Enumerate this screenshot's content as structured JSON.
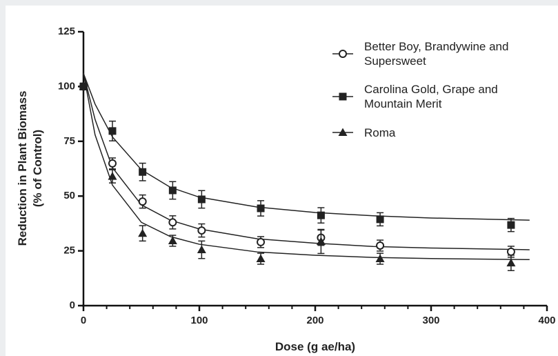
{
  "chart_data": {
    "type": "scatter",
    "xlabel": "Dose (g ae/ha)",
    "ylabel": [
      "Reduction in Plant Biomass",
      "(% of Control)"
    ],
    "xlim": [
      0,
      400
    ],
    "xticks": [
      0,
      100,
      200,
      300,
      400
    ],
    "xminorticks": [
      20,
      40,
      60,
      80,
      120,
      140,
      160,
      180,
      220,
      240,
      260,
      280,
      320,
      340,
      360,
      380
    ],
    "ylim": [
      0,
      125
    ],
    "yticks": [
      0,
      25,
      50,
      75,
      100,
      125
    ],
    "x": [
      0,
      25,
      51,
      77,
      102,
      153,
      205,
      256,
      369
    ],
    "fit_x": [
      0,
      10,
      25,
      50,
      75,
      100,
      150,
      200,
      250,
      300,
      385
    ],
    "series": [
      {
        "name": "Better Boy, Brandywine and Supersweet",
        "marker": "open-circle",
        "color": "#222222",
        "values": [
          100,
          64.9,
          47.5,
          38,
          34.3,
          29,
          31,
          27.4,
          24.6
        ],
        "errors": [
          1.5,
          2.5,
          3,
          3,
          3,
          2.5,
          3.5,
          2.5,
          2.5
        ],
        "fit_values": [
          106,
          85,
          63,
          46,
          39,
          35,
          30.5,
          28.5,
          27,
          26.3,
          25.5
        ]
      },
      {
        "name": "Carolina Gold, Grape and Mountain Merit",
        "marker": "square",
        "color": "#222222",
        "values": [
          100,
          79.7,
          61,
          52.6,
          48.5,
          44.4,
          41.2,
          39.4,
          36.8
        ],
        "errors": [
          1.5,
          4.5,
          4,
          4,
          4,
          3.5,
          3.5,
          3,
          3
        ],
        "fit_values": [
          106,
          92,
          77,
          62,
          54,
          49.5,
          45,
          42.5,
          41,
          40,
          39
        ]
      },
      {
        "name": "Roma",
        "marker": "triangle",
        "color": "#222222",
        "values": [
          100,
          59,
          33,
          29.6,
          25.5,
          21.4,
          29.3,
          21.4,
          19.5
        ],
        "errors": [
          1.5,
          3,
          3.5,
          2.5,
          4,
          2.5,
          5.5,
          2.5,
          3.5
        ],
        "fit_values": [
          106,
          78,
          55,
          38,
          31.5,
          28,
          24.5,
          23,
          22,
          21.5,
          21
        ]
      }
    ]
  }
}
